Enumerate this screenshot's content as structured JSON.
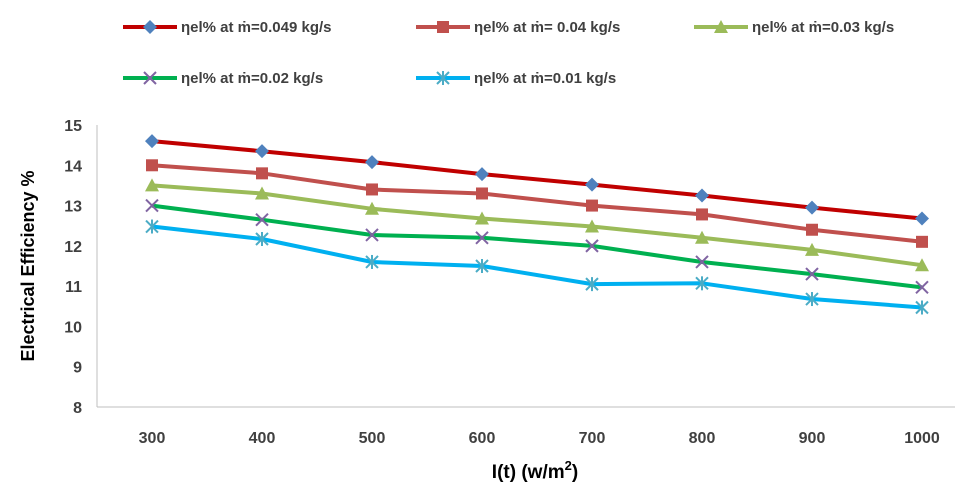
{
  "chart_data": {
    "type": "line",
    "title": "",
    "xlabel": "I(t) (w/m",
    "xlabel_superscript": "2",
    "xlabel_close": ")",
    "ylabel": "Electrical Efficiency %",
    "categories": [
      "300",
      "400",
      "500",
      "600",
      "700",
      "800",
      "900",
      "1000"
    ],
    "x": [
      300,
      400,
      500,
      600,
      700,
      800,
      900,
      1000
    ],
    "ylim": [
      8,
      15
    ],
    "yticks": [
      "8",
      "9",
      "10",
      "11",
      "12",
      "13",
      "14",
      "15"
    ],
    "grid": false,
    "legend_position": "top",
    "series": [
      {
        "name": "ηel% at ṁ=0.049 kg/s",
        "color": "#c00000",
        "marker": "diamond",
        "marker_color": "#4f81bd",
        "values": [
          14.6,
          14.35,
          14.08,
          13.78,
          13.52,
          13.25,
          12.95,
          12.68
        ]
      },
      {
        "name": "ηel% at ṁ= 0.04 kg/s",
        "color": "#c0504d",
        "marker": "square",
        "marker_color": "#c0504d",
        "values": [
          14.0,
          13.8,
          13.4,
          13.3,
          13.0,
          12.78,
          12.4,
          12.1
        ]
      },
      {
        "name": "ηel% at ṁ=0.03 kg/s",
        "color": "#9bbb59",
        "marker": "triangle",
        "marker_color": "#9bbb59",
        "values": [
          13.5,
          13.3,
          12.92,
          12.68,
          12.48,
          12.2,
          11.9,
          11.52
        ]
      },
      {
        "name": "ηel% at ṁ=0.02 kg/s",
        "color": "#00b050",
        "marker": "x",
        "marker_color": "#8064a2",
        "values": [
          13.0,
          12.65,
          12.27,
          12.2,
          12.0,
          11.6,
          11.3,
          10.97
        ]
      },
      {
        "name": "ηel%  at ṁ=0.01 kg/s",
        "color": "#00b0f0",
        "marker": "star",
        "marker_color": "#4bacc6",
        "values": [
          12.48,
          12.17,
          11.6,
          11.5,
          11.05,
          11.07,
          10.68,
          10.47
        ]
      }
    ]
  }
}
